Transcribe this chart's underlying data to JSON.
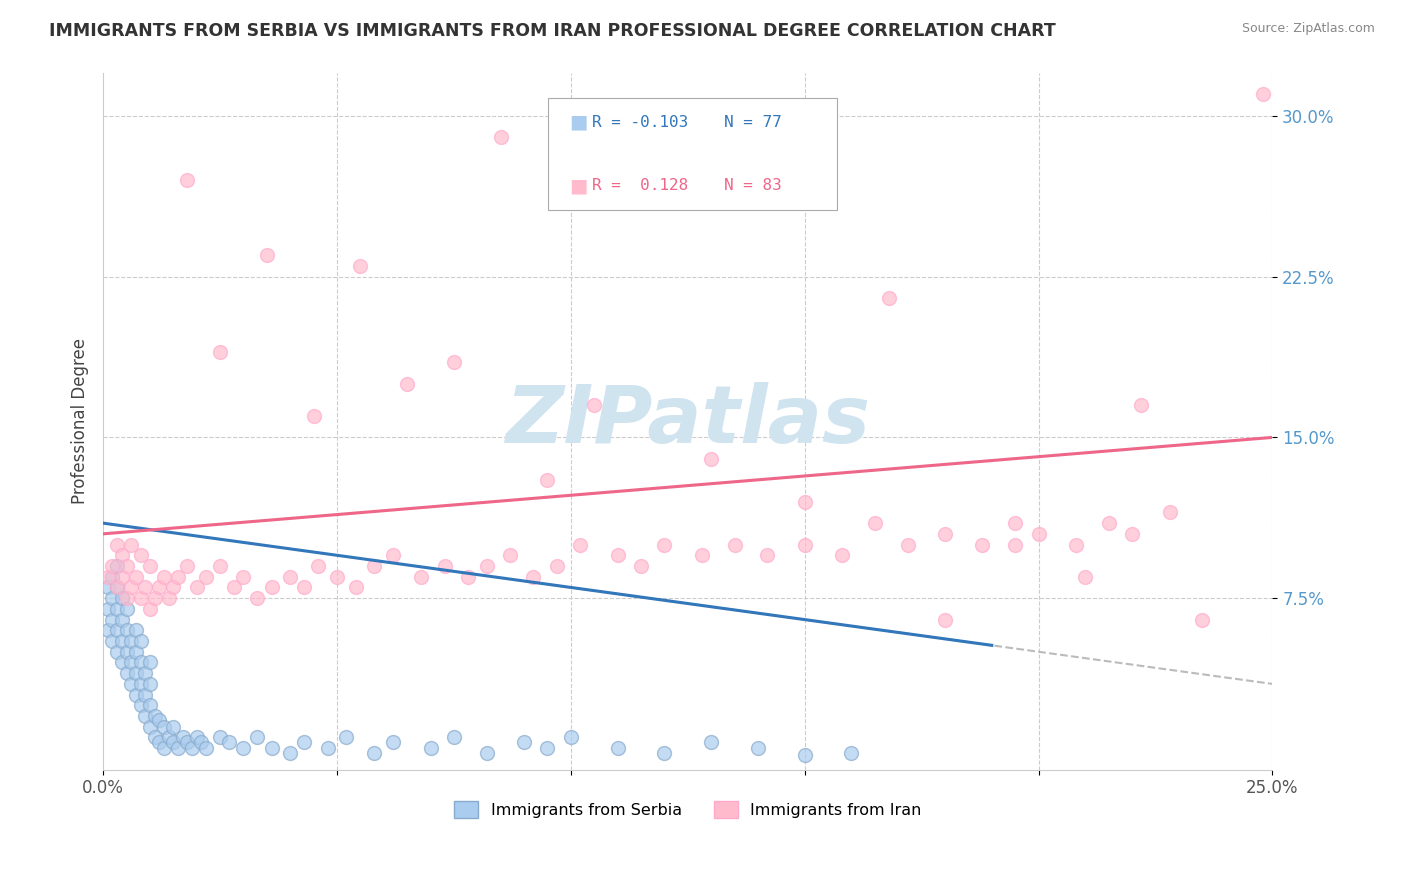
{
  "title": "IMMIGRANTS FROM SERBIA VS IMMIGRANTS FROM IRAN PROFESSIONAL DEGREE CORRELATION CHART",
  "source": "Source: ZipAtlas.com",
  "ylabel": "Professional Degree",
  "xlim": [
    0.0,
    0.25
  ],
  "ylim": [
    -0.005,
    0.32
  ],
  "serbia_R": -0.103,
  "serbia_N": 77,
  "iran_R": 0.128,
  "iran_N": 83,
  "serbia_color": "#aaccee",
  "serbia_edge_color": "#88aacc",
  "iran_color": "#ffbbcc",
  "iran_edge_color": "#ffaacc",
  "serbia_line_color": "#3377bb",
  "iran_line_color": "#ee6688",
  "dashed_line_color": "#bbbbbb",
  "watermark_text": "ZIPatlas",
  "watermark_color": "#d0e4f0",
  "background_color": "#ffffff",
  "grid_color": "#cccccc",
  "ytick_color": "#5599cc",
  "title_color": "#333333",
  "source_color": "#888888",
  "legend_text_serbia_R": "R = -0.103",
  "legend_text_serbia_N": "N = 77",
  "legend_text_iran_R": "R =  0.128",
  "legend_text_iran_N": "N = 83",
  "legend_text_color_serbia": "#3377bb",
  "legend_text_color_iran": "#ee6688",
  "serbia_x": [
    0.001,
    0.001,
    0.001,
    0.002,
    0.002,
    0.002,
    0.002,
    0.003,
    0.003,
    0.003,
    0.003,
    0.003,
    0.004,
    0.004,
    0.004,
    0.004,
    0.005,
    0.005,
    0.005,
    0.005,
    0.006,
    0.006,
    0.006,
    0.007,
    0.007,
    0.007,
    0.007,
    0.008,
    0.008,
    0.008,
    0.008,
    0.009,
    0.009,
    0.009,
    0.01,
    0.01,
    0.01,
    0.01,
    0.011,
    0.011,
    0.012,
    0.012,
    0.013,
    0.013,
    0.014,
    0.015,
    0.015,
    0.016,
    0.017,
    0.018,
    0.019,
    0.02,
    0.021,
    0.022,
    0.025,
    0.027,
    0.03,
    0.033,
    0.036,
    0.04,
    0.043,
    0.048,
    0.052,
    0.058,
    0.062,
    0.07,
    0.075,
    0.082,
    0.09,
    0.095,
    0.1,
    0.11,
    0.12,
    0.13,
    0.14,
    0.15,
    0.16
  ],
  "serbia_y": [
    0.06,
    0.07,
    0.08,
    0.055,
    0.065,
    0.075,
    0.085,
    0.05,
    0.06,
    0.07,
    0.08,
    0.09,
    0.045,
    0.055,
    0.065,
    0.075,
    0.04,
    0.05,
    0.06,
    0.07,
    0.035,
    0.045,
    0.055,
    0.03,
    0.04,
    0.05,
    0.06,
    0.025,
    0.035,
    0.045,
    0.055,
    0.02,
    0.03,
    0.04,
    0.015,
    0.025,
    0.035,
    0.045,
    0.01,
    0.02,
    0.008,
    0.018,
    0.005,
    0.015,
    0.01,
    0.008,
    0.015,
    0.005,
    0.01,
    0.008,
    0.005,
    0.01,
    0.008,
    0.005,
    0.01,
    0.008,
    0.005,
    0.01,
    0.005,
    0.003,
    0.008,
    0.005,
    0.01,
    0.003,
    0.008,
    0.005,
    0.01,
    0.003,
    0.008,
    0.005,
    0.01,
    0.005,
    0.003,
    0.008,
    0.005,
    0.002,
    0.003
  ],
  "iran_x": [
    0.001,
    0.002,
    0.003,
    0.003,
    0.004,
    0.004,
    0.005,
    0.005,
    0.006,
    0.006,
    0.007,
    0.008,
    0.008,
    0.009,
    0.01,
    0.01,
    0.011,
    0.012,
    0.013,
    0.014,
    0.015,
    0.016,
    0.018,
    0.02,
    0.022,
    0.025,
    0.028,
    0.03,
    0.033,
    0.036,
    0.04,
    0.043,
    0.046,
    0.05,
    0.054,
    0.058,
    0.062,
    0.068,
    0.073,
    0.078,
    0.082,
    0.087,
    0.092,
    0.097,
    0.102,
    0.11,
    0.115,
    0.12,
    0.128,
    0.135,
    0.142,
    0.15,
    0.158,
    0.165,
    0.172,
    0.18,
    0.188,
    0.195,
    0.2,
    0.208,
    0.215,
    0.22,
    0.228,
    0.018,
    0.025,
    0.035,
    0.045,
    0.055,
    0.065,
    0.075,
    0.085,
    0.095,
    0.105,
    0.115,
    0.13,
    0.15,
    0.168,
    0.18,
    0.195,
    0.21,
    0.222,
    0.235,
    0.248
  ],
  "iran_y": [
    0.085,
    0.09,
    0.08,
    0.1,
    0.085,
    0.095,
    0.075,
    0.09,
    0.08,
    0.1,
    0.085,
    0.075,
    0.095,
    0.08,
    0.07,
    0.09,
    0.075,
    0.08,
    0.085,
    0.075,
    0.08,
    0.085,
    0.09,
    0.08,
    0.085,
    0.09,
    0.08,
    0.085,
    0.075,
    0.08,
    0.085,
    0.08,
    0.09,
    0.085,
    0.08,
    0.09,
    0.095,
    0.085,
    0.09,
    0.085,
    0.09,
    0.095,
    0.085,
    0.09,
    0.1,
    0.095,
    0.09,
    0.1,
    0.095,
    0.1,
    0.095,
    0.1,
    0.095,
    0.11,
    0.1,
    0.105,
    0.1,
    0.11,
    0.105,
    0.1,
    0.11,
    0.105,
    0.115,
    0.27,
    0.19,
    0.235,
    0.16,
    0.23,
    0.175,
    0.185,
    0.29,
    0.13,
    0.165,
    0.295,
    0.14,
    0.12,
    0.215,
    0.065,
    0.1,
    0.085,
    0.165,
    0.065,
    0.31
  ]
}
